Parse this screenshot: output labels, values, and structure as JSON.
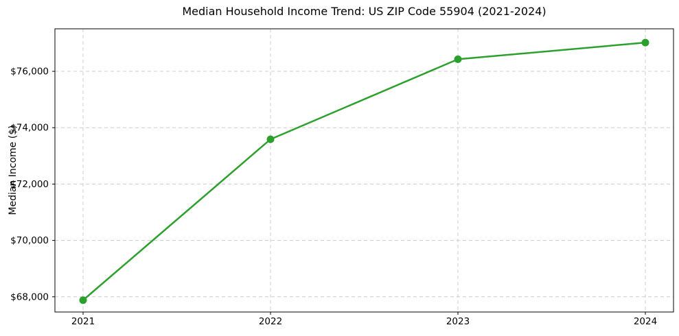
{
  "chart_data": {
    "type": "line",
    "title": "Median Household Income Trend: US ZIP Code 55904 (2021-2024)",
    "xlabel": "",
    "ylabel": "Median Income ($)",
    "categories": [
      "2021",
      "2022",
      "2023",
      "2024"
    ],
    "series": [
      {
        "values": [
          67880,
          73590,
          76430,
          77020
        ]
      }
    ],
    "ylim": [
      67460,
      77510
    ],
    "yticks": [
      {
        "value": 68000,
        "label": "$68,000"
      },
      {
        "value": 70000,
        "label": "$70,000"
      },
      {
        "value": 72000,
        "label": "$72,000"
      },
      {
        "value": 74000,
        "label": "$74,000"
      },
      {
        "value": 76000,
        "label": "$76,000"
      }
    ],
    "grid": true,
    "legend": false,
    "marker": "circle",
    "colors": {
      "line": "#2ca02c",
      "grid": "#cccccc",
      "axis": "#000000",
      "text": "#000000",
      "background": "#ffffff"
    }
  }
}
